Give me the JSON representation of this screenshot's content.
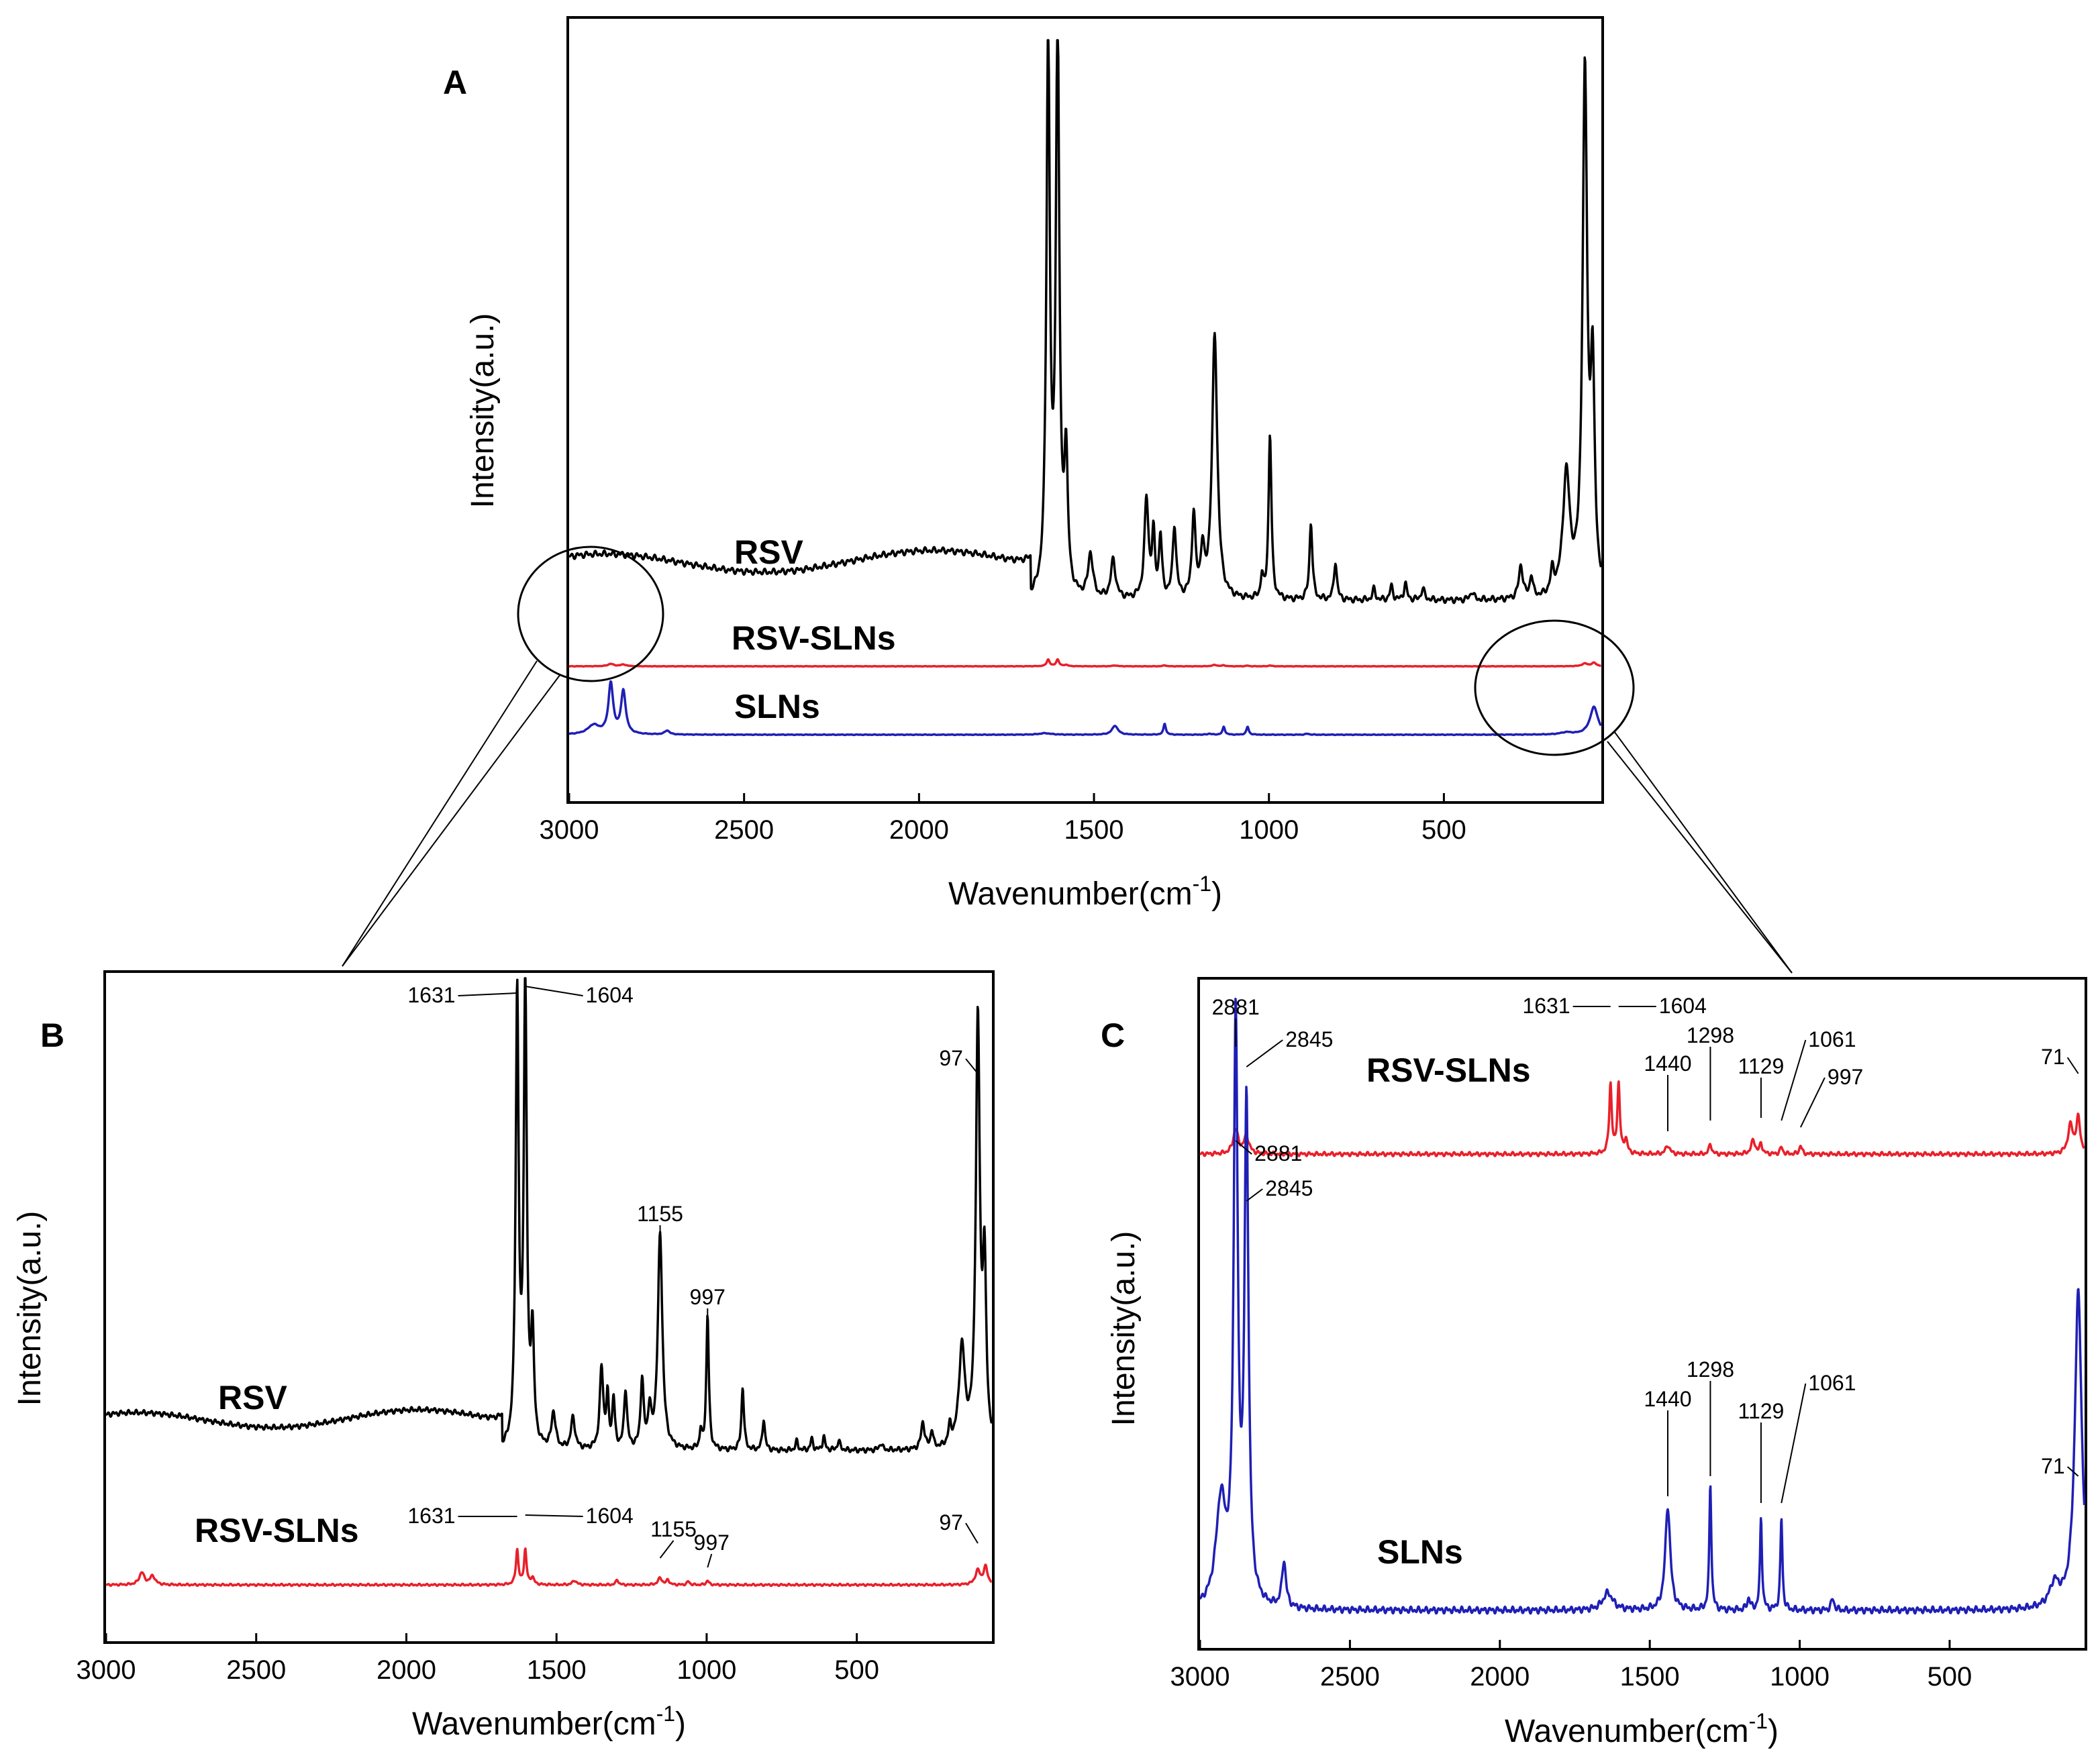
{
  "chart_data": [
    {
      "panel": "A",
      "type": "line",
      "title": "A",
      "xlabel": "Wavenumber(cm-1)",
      "xlabel_base": "Wavenumber(cm",
      "xlabel_sup": "-1",
      "xlabel_tail": ")",
      "ylabel": "Intensity(a.u.)",
      "xlim": [
        3000,
        50
      ],
      "xticks": [
        3000,
        2500,
        2000,
        1500,
        1000,
        500
      ],
      "series": [
        {
          "name": "RSV",
          "color": "#000000",
          "peaks": [
            [
              1631,
              100
            ],
            [
              1604,
              100
            ],
            [
              1580,
              22
            ],
            [
              1510,
              8
            ],
            [
              1445,
              6
            ],
            [
              1350,
              18
            ],
            [
              1330,
              10
            ],
            [
              1310,
              10
            ],
            [
              1270,
              12
            ],
            [
              1215,
              15
            ],
            [
              1155,
              48
            ],
            [
              997,
              30
            ],
            [
              880,
              15
            ],
            [
              810,
              8
            ],
            [
              620,
              2
            ],
            [
              280,
              6
            ],
            [
              240,
              4
            ],
            [
              180,
              4
            ],
            [
              140,
              25
            ],
            [
              97,
              90
            ],
            [
              70,
              30
            ]
          ]
        },
        {
          "name": "RSV-SLNs",
          "color": "#e8202a",
          "peaks": [
            [
              2881,
              1
            ],
            [
              1631,
              3
            ],
            [
              1604,
              3
            ],
            [
              1155,
              1
            ],
            [
              997,
              1
            ],
            [
              97,
              1
            ]
          ]
        },
        {
          "name": "SLNs",
          "color": "#1f1fb5",
          "peaks": [
            [
              2881,
              20
            ],
            [
              2845,
              18
            ],
            [
              2720,
              2
            ],
            [
              1440,
              1
            ],
            [
              1298,
              1
            ],
            [
              1129,
              1
            ],
            [
              1061,
              1
            ],
            [
              71,
              3
            ]
          ]
        }
      ]
    },
    {
      "panel": "B",
      "type": "line",
      "title": "B",
      "xlabel": "Wavenumber(cm-1)",
      "xlabel_base": "Wavenumber(cm",
      "xlabel_sup": "-1",
      "xlabel_tail": ")",
      "ylabel": "Intensity(a.u.)",
      "xlim": [
        3000,
        50
      ],
      "xticks": [
        3000,
        2500,
        2000,
        1500,
        1000,
        500
      ],
      "series": [
        {
          "name": "RSV",
          "color": "#000000"
        },
        {
          "name": "RSV-SLNs",
          "color": "#e8202a"
        }
      ],
      "annotations": [
        {
          "text": "1631",
          "series": "RSV",
          "x": 1631
        },
        {
          "text": "1604",
          "series": "RSV",
          "x": 1604
        },
        {
          "text": "1155",
          "series": "RSV",
          "x": 1155
        },
        {
          "text": "997",
          "series": "RSV",
          "x": 997
        },
        {
          "text": "97",
          "series": "RSV",
          "x": 97
        },
        {
          "text": "1631",
          "series": "RSV-SLNs",
          "x": 1631
        },
        {
          "text": "1604",
          "series": "RSV-SLNs",
          "x": 1604
        },
        {
          "text": "1155",
          "series": "RSV-SLNs",
          "x": 1155
        },
        {
          "text": "997",
          "series": "RSV-SLNs",
          "x": 997
        },
        {
          "text": "97",
          "series": "RSV-SLNs",
          "x": 97
        }
      ]
    },
    {
      "panel": "C",
      "type": "line",
      "title": "C",
      "xlabel": "Wavenumber(cm-1)",
      "xlabel_base": "Wavenumber(cm",
      "xlabel_sup": "-1",
      "xlabel_tail": ")",
      "ylabel": "Intensity(a.u.)",
      "xlim": [
        3000,
        50
      ],
      "xticks": [
        3000,
        2500,
        2000,
        1500,
        1000,
        500
      ],
      "series": [
        {
          "name": "RSV-SLNs",
          "color": "#e8202a"
        },
        {
          "name": "SLNs",
          "color": "#1f1fb5"
        }
      ],
      "annotations": [
        {
          "text": "2881",
          "series": "RSV-SLNs",
          "x": 2881
        },
        {
          "text": "2845",
          "series": "RSV-SLNs",
          "x": 2845
        },
        {
          "text": "1631",
          "series": "RSV-SLNs",
          "x": 1631
        },
        {
          "text": "1604",
          "series": "RSV-SLNs",
          "x": 1604
        },
        {
          "text": "1440",
          "series": "RSV-SLNs",
          "x": 1440
        },
        {
          "text": "1298",
          "series": "RSV-SLNs",
          "x": 1298
        },
        {
          "text": "1129",
          "series": "RSV-SLNs",
          "x": 1129
        },
        {
          "text": "1061",
          "series": "RSV-SLNs",
          "x": 1061
        },
        {
          "text": "997",
          "series": "RSV-SLNs",
          "x": 997
        },
        {
          "text": "71",
          "series": "RSV-SLNs",
          "x": 71
        },
        {
          "text": "2881",
          "series": "SLNs",
          "x": 2881
        },
        {
          "text": "2845",
          "series": "SLNs",
          "x": 2845
        },
        {
          "text": "1440",
          "series": "SLNs",
          "x": 1440
        },
        {
          "text": "1298",
          "series": "SLNs",
          "x": 1298
        },
        {
          "text": "1129",
          "series": "SLNs",
          "x": 1129
        },
        {
          "text": "1061",
          "series": "SLNs",
          "x": 1061
        },
        {
          "text": "71",
          "series": "SLNs",
          "x": 71
        }
      ]
    }
  ]
}
